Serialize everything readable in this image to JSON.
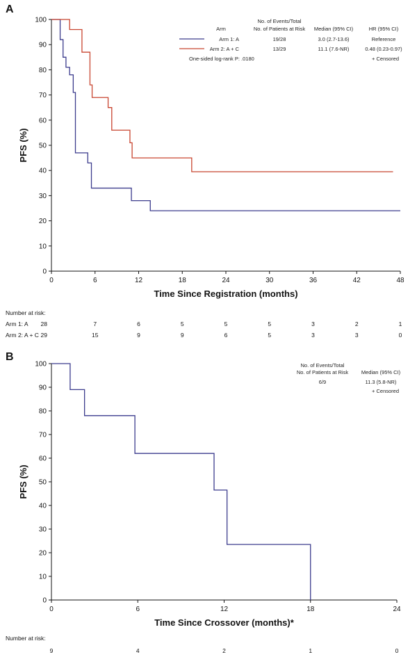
{
  "chart_data": [
    {
      "type": "line",
      "panel_label": "A",
      "xlabel": "Time Since Registration (months)",
      "ylabel": "PFS (%)",
      "xlim": [
        0,
        48
      ],
      "ylim": [
        0,
        100
      ],
      "xticks": [
        0,
        6,
        12,
        18,
        24,
        30,
        36,
        42,
        48
      ],
      "yticks": [
        0,
        10,
        20,
        30,
        40,
        50,
        60,
        70,
        80,
        90,
        100
      ],
      "grid": false,
      "legend": {
        "placement": "top-right",
        "header_arm": "Arm",
        "header_events_1": "No. of Events/Total",
        "header_events_2": "No. of Patients at Risk",
        "header_median": "Median (95% CI)",
        "header_hr": "HR (95% CI)",
        "log_rank": "One-sided log-rank P: .0180",
        "censored": "+ Censored"
      },
      "series": [
        {
          "name": "Arm 1: A",
          "color": "#3a3a8c",
          "events": "19/28",
          "median": "3.0 (2.7-13.6)",
          "hr": "Reference",
          "x": [
            0,
            1.2,
            1.6,
            2.0,
            2.5,
            3.0,
            3.3,
            5.0,
            5.5,
            11.0,
            13.6,
            48
          ],
          "y": [
            100,
            92,
            85,
            81,
            78,
            71,
            47,
            43,
            33,
            28,
            24,
            24
          ]
        },
        {
          "name": "Arm 2: A + C",
          "color": "#c8432e",
          "events": "13/29",
          "median": "11.1 (7.6-NR)",
          "hr": "0.48 (0.23-0.97)",
          "x": [
            0,
            2.5,
            4.2,
            5.3,
            5.6,
            7.8,
            8.3,
            10.8,
            11.1,
            19.3,
            47
          ],
          "y": [
            100,
            96,
            87,
            74,
            69,
            65,
            56,
            51,
            45,
            39.5,
            39.5
          ]
        }
      ],
      "risk_table": {
        "title": "Number at risk:",
        "times": [
          0,
          6,
          12,
          18,
          24,
          30,
          36,
          42,
          48
        ],
        "rows": [
          {
            "label": "Arm 1: A",
            "values": [
              "28",
              "7",
              "6",
              "5",
              "5",
              "5",
              "3",
              "2",
              "1"
            ]
          },
          {
            "label": "Arm 2: A + C",
            "values": [
              "29",
              "15",
              "9",
              "9",
              "6",
              "5",
              "3",
              "3",
              "0"
            ]
          }
        ]
      }
    },
    {
      "type": "line",
      "panel_label": "B",
      "xlabel": "Time Since Crossover (months)*",
      "ylabel": "PFS (%)",
      "xlim": [
        0,
        24
      ],
      "ylim": [
        0,
        100
      ],
      "xticks": [
        0,
        6,
        12,
        18,
        24
      ],
      "yticks": [
        0,
        10,
        20,
        30,
        40,
        50,
        60,
        70,
        80,
        90,
        100
      ],
      "grid": false,
      "legend": {
        "placement": "top-right",
        "header_events_1": "No. of Events/Total",
        "header_events_2": "No. of Patients at Risk",
        "header_median": "Median (95% CI)",
        "censored": "+ Censored"
      },
      "series": [
        {
          "color": "#3a3a8c",
          "events": "6/9",
          "median": "11.3 (5.8-NR)",
          "x": [
            0,
            1.3,
            2.3,
            5.8,
            11.3,
            12.2,
            18.0
          ],
          "y": [
            100,
            89,
            78,
            62,
            46.5,
            23.5,
            0
          ]
        }
      ],
      "risk_table": {
        "title": "Number at risk:",
        "times": [
          0,
          6,
          12,
          18,
          24
        ],
        "rows": [
          {
            "label": "",
            "values": [
              "9",
              "4",
              "2",
              "1",
              "0"
            ]
          }
        ]
      }
    }
  ]
}
